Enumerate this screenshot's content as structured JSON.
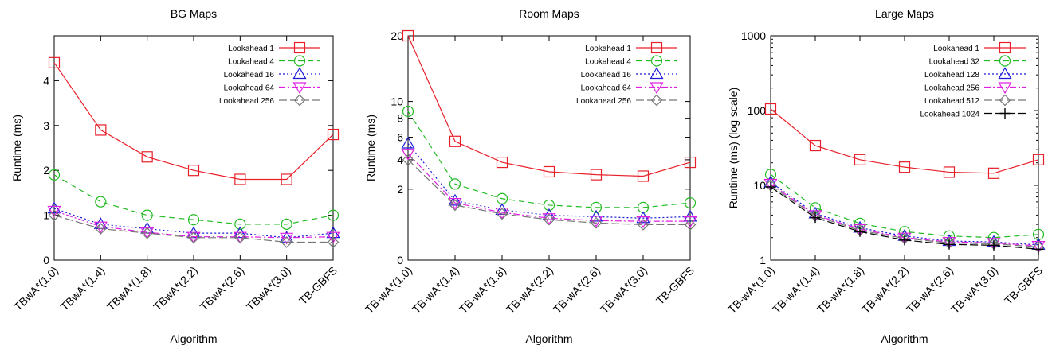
{
  "chart_data": [
    {
      "type": "line",
      "title": "BG Maps",
      "xlabel": "Algorithm",
      "ylabel": "Runtime (ms)",
      "categories": [
        "TBwA*(1.0)",
        "TBwA*(1.4)",
        "TBwA*(1.8)",
        "TBwA*(2.2)",
        "TBwA*(2.6)",
        "TBwA*(3.0)",
        "TB-GBFS"
      ],
      "ylim": [
        0,
        5
      ],
      "yscale": "linear",
      "yticks": [
        "0",
        "1",
        "2",
        "3",
        "4"
      ],
      "legend": "top-right",
      "series": [
        {
          "name": "Lookahead 1",
          "values": [
            4.4,
            2.9,
            2.3,
            2.0,
            1.8,
            1.8,
            2.8
          ],
          "color": "#e8202a",
          "marker": "square",
          "dash": ""
        },
        {
          "name": "Lookahead 4",
          "values": [
            1.9,
            1.3,
            1.0,
            0.9,
            0.8,
            0.8,
            1.0
          ],
          "color": "#22bb22",
          "marker": "circle",
          "dash": "7,5"
        },
        {
          "name": "Lookahead 16",
          "values": [
            1.15,
            0.8,
            0.7,
            0.6,
            0.6,
            0.5,
            0.6
          ],
          "color": "#1b1bd6",
          "marker": "triangle-up",
          "dash": "2,3"
        },
        {
          "name": "Lookahead 64",
          "values": [
            1.1,
            0.75,
            0.62,
            0.52,
            0.52,
            0.5,
            0.52
          ],
          "color": "#e020e0",
          "marker": "triangle-down",
          "dash": "8,3,2,3"
        },
        {
          "name": "Lookahead 256",
          "values": [
            1.0,
            0.7,
            0.6,
            0.5,
            0.5,
            0.4,
            0.4
          ],
          "color": "#777777",
          "marker": "diamond",
          "dash": "10,4"
        }
      ]
    },
    {
      "type": "line",
      "title": "Room Maps",
      "xlabel": "Algorithm",
      "ylabel": "Runtime (ms)",
      "categories": [
        "TB-wA*(1.0)",
        "TB-wA*(1.4)",
        "TB-wA*(1.8)",
        "TB-wA*(2.2)",
        "TB-wA*(2.6)",
        "TB-wA*(3.0)",
        "TB-GBFS"
      ],
      "ylim": [
        0,
        20
      ],
      "yscale": "sqrt",
      "yticks": [
        "0",
        "2",
        "4",
        "6",
        "8",
        "10",
        "20"
      ],
      "legend": "top-right",
      "series": [
        {
          "name": "Lookahead 1",
          "values": [
            20,
            5.6,
            3.8,
            3.1,
            2.9,
            2.8,
            3.8
          ],
          "color": "#e8202a",
          "marker": "square",
          "dash": ""
        },
        {
          "name": "Lookahead 4",
          "values": [
            8.8,
            2.3,
            1.5,
            1.2,
            1.1,
            1.1,
            1.3
          ],
          "color": "#22bb22",
          "marker": "circle",
          "dash": "7,5"
        },
        {
          "name": "Lookahead 16",
          "values": [
            5.4,
            1.4,
            1.0,
            0.8,
            0.75,
            0.7,
            0.75
          ],
          "color": "#1b1bd6",
          "marker": "triangle-up",
          "dash": "2,3"
        },
        {
          "name": "Lookahead 64",
          "values": [
            4.5,
            1.3,
            0.9,
            0.7,
            0.62,
            0.6,
            0.6
          ],
          "color": "#e020e0",
          "marker": "triangle-down",
          "dash": "8,3,2,3"
        },
        {
          "name": "Lookahead 256",
          "values": [
            4.0,
            1.2,
            0.85,
            0.65,
            0.55,
            0.5,
            0.5
          ],
          "color": "#777777",
          "marker": "diamond",
          "dash": "10,4"
        }
      ]
    },
    {
      "type": "line",
      "title": "Large Maps",
      "xlabel": "Algorithm",
      "ylabel": "Runtime (ms) (log scale)",
      "categories": [
        "TB-wA*(1.0)",
        "TB-wA*(1.4)",
        "TB-wA*(1.8)",
        "TB-wA*(2.2)",
        "TB-wA*(2.6)",
        "TB-wA*(3.0)",
        "TB-GBFS"
      ],
      "ylim": [
        1,
        1000
      ],
      "yscale": "log",
      "yticks": [
        "1",
        "10",
        "100",
        "1000"
      ],
      "legend": "top-right",
      "series": [
        {
          "name": "Lookahead 1",
          "values": [
            105,
            34,
            22,
            17.5,
            15,
            14.5,
            22
          ],
          "color": "#e8202a",
          "marker": "square",
          "dash": ""
        },
        {
          "name": "Lookahead 32",
          "values": [
            14,
            5.0,
            3.1,
            2.4,
            2.1,
            2.0,
            2.2
          ],
          "color": "#22bb22",
          "marker": "circle",
          "dash": "7,5"
        },
        {
          "name": "Lookahead 128",
          "values": [
            11,
            4.2,
            2.7,
            2.1,
            1.8,
            1.75,
            1.6
          ],
          "color": "#1b1bd6",
          "marker": "triangle-up",
          "dash": "2,3"
        },
        {
          "name": "Lookahead 256",
          "values": [
            10.5,
            4.0,
            2.6,
            2.0,
            1.75,
            1.7,
            1.55
          ],
          "color": "#e020e0",
          "marker": "triangle-down",
          "dash": "8,3,2,3"
        },
        {
          "name": "Lookahead 512",
          "values": [
            10,
            3.9,
            2.5,
            1.95,
            1.7,
            1.65,
            1.5
          ],
          "color": "#777777",
          "marker": "diamond",
          "dash": "10,4"
        },
        {
          "name": "Lookahead 1024",
          "values": [
            9.5,
            3.7,
            2.4,
            1.85,
            1.62,
            1.58,
            1.4
          ],
          "color": "#000000",
          "marker": "plus",
          "dash": "10,4"
        }
      ]
    }
  ]
}
